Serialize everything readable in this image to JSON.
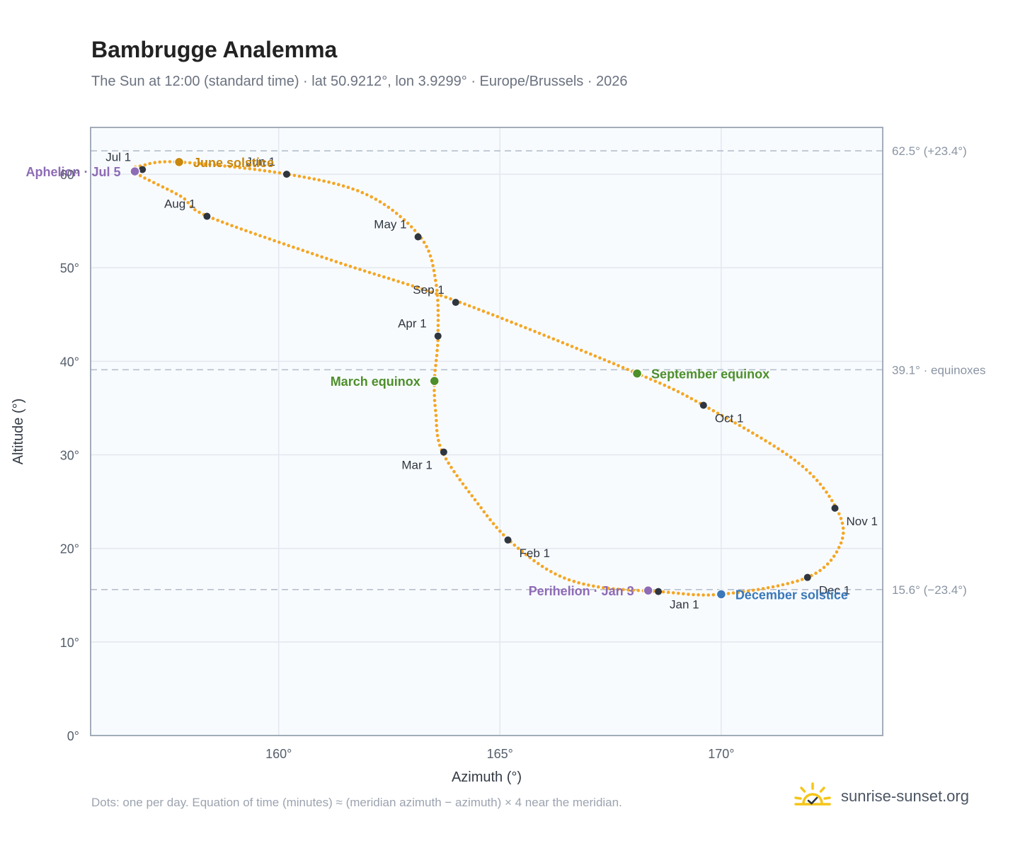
{
  "title": "Bambrugge Analemma",
  "subtitle": "The Sun at 12:00 (standard time) · lat 50.9212°, lon 3.9299° · Europe/Brussels · 2026",
  "footnote": "Dots: one per day. Equation of time (minutes) ≈ (meridian azimuth − azimuth) × 4 near the meridian.",
  "brand": {
    "name": "sunrise-sunset.org",
    "logo_icon": "sun-check-icon"
  },
  "colors": {
    "path": "#f5a623",
    "month_marker": "#2f3640",
    "solstice_june": "#c8870e",
    "solstice_december": "#3a78b9",
    "equinox": "#4d8f2a",
    "apsis": "#8e6bb5",
    "reference_line": "#b6bfcc",
    "plot_background": "#f8fbfe",
    "grid": "#e3e8ef",
    "axis_border": "#9aa4b2"
  },
  "chart_data": {
    "type": "scatter",
    "xlabel": "Azimuth (°)",
    "ylabel": "Altitude (°)",
    "xlim": [
      155.75,
      173.65
    ],
    "ylim": [
      0,
      65
    ],
    "x_ticks": [
      160,
      165,
      170
    ],
    "y_ticks": [
      0,
      10,
      20,
      30,
      40,
      50,
      60
    ],
    "tick_suffix": "°",
    "grid": true,
    "legend": "none",
    "reference_lines": [
      {
        "y": 62.5,
        "label": "62.5° (+23.4°)"
      },
      {
        "y": 39.1,
        "label": "39.1° · equinoxes"
      },
      {
        "y": 15.6,
        "label": "15.6° (−23.4°)"
      }
    ],
    "daily_positions_note": "one dot per day along the analemma path",
    "path_waypoints": [
      {
        "x": 168.58,
        "y": 15.39
      },
      {
        "x": 167.2,
        "y": 15.9
      },
      {
        "x": 166.2,
        "y": 17.4
      },
      {
        "x": 165.2,
        "y": 20.9
      },
      {
        "x": 164.5,
        "y": 24.8
      },
      {
        "x": 163.7,
        "y": 30.3
      },
      {
        "x": 163.55,
        "y": 34.5
      },
      {
        "x": 163.52,
        "y": 37.9
      },
      {
        "x": 163.6,
        "y": 42.7
      },
      {
        "x": 163.55,
        "y": 48.5
      },
      {
        "x": 163.2,
        "y": 53.3
      },
      {
        "x": 162.0,
        "y": 57.8
      },
      {
        "x": 160.2,
        "y": 60.0
      },
      {
        "x": 157.75,
        "y": 61.3
      },
      {
        "x": 156.9,
        "y": 60.9
      },
      {
        "x": 156.75,
        "y": 60.2
      },
      {
        "x": 157.8,
        "y": 57.6
      },
      {
        "x": 158.4,
        "y": 55.5
      },
      {
        "x": 161.2,
        "y": 50.8
      },
      {
        "x": 164.1,
        "y": 46.3
      },
      {
        "x": 168.1,
        "y": 38.7
      },
      {
        "x": 169.6,
        "y": 35.3
      },
      {
        "x": 171.7,
        "y": 29.3
      },
      {
        "x": 172.6,
        "y": 24.3
      },
      {
        "x": 172.7,
        "y": 20.5
      },
      {
        "x": 171.95,
        "y": 16.9
      },
      {
        "x": 170.0,
        "y": 15.1
      },
      {
        "x": 168.58,
        "y": 15.39
      }
    ],
    "month_markers": [
      {
        "label": "Jan 1",
        "x": 168.58,
        "y": 15.39,
        "label_pos": "below-right"
      },
      {
        "label": "Feb 1",
        "x": 165.18,
        "y": 20.9,
        "label_pos": "below-right"
      },
      {
        "label": "Mar 1",
        "x": 163.73,
        "y": 30.3,
        "label_pos": "below-left"
      },
      {
        "label": "Apr 1",
        "x": 163.6,
        "y": 42.7,
        "label_pos": "above-left"
      },
      {
        "label": "May 1",
        "x": 163.15,
        "y": 53.3,
        "label_pos": "above-left"
      },
      {
        "label": "Jun 1",
        "x": 160.18,
        "y": 60.0,
        "label_pos": "above-left"
      },
      {
        "label": "Jul 1",
        "x": 156.92,
        "y": 60.5,
        "label_pos": "above-left"
      },
      {
        "label": "Aug 1",
        "x": 158.38,
        "y": 55.5,
        "label_pos": "above-left"
      },
      {
        "label": "Sep 1",
        "x": 164.0,
        "y": 46.3,
        "label_pos": "above-left"
      },
      {
        "label": "Oct 1",
        "x": 169.6,
        "y": 35.3,
        "label_pos": "below-right"
      },
      {
        "label": "Nov 1",
        "x": 172.57,
        "y": 24.3,
        "label_pos": "below-right"
      },
      {
        "label": "Dec 1",
        "x": 171.95,
        "y": 16.9,
        "label_pos": "below-right"
      }
    ],
    "events": [
      {
        "label": "June solstice",
        "x": 157.75,
        "y": 61.3,
        "color_key": "solstice_june",
        "label_pos": "right"
      },
      {
        "label": "December solstice",
        "x": 170.0,
        "y": 15.1,
        "color_key": "solstice_december",
        "label_pos": "right"
      },
      {
        "label": "March equinox",
        "x": 163.52,
        "y": 37.9,
        "color_key": "equinox",
        "label_pos": "left"
      },
      {
        "label": "September equinox",
        "x": 168.1,
        "y": 38.7,
        "color_key": "equinox",
        "label_pos": "right"
      },
      {
        "label": "Aphelion · Jul 5",
        "x": 156.75,
        "y": 60.3,
        "color_key": "apsis",
        "label_pos": "left"
      },
      {
        "label": "Perihelion · Jan 3",
        "x": 168.35,
        "y": 15.5,
        "color_key": "apsis",
        "label_pos": "left"
      }
    ]
  }
}
